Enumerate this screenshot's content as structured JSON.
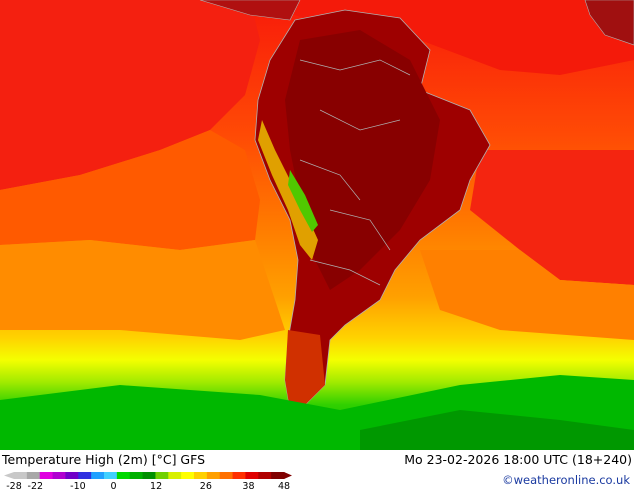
{
  "header": {
    "title": "Temperature High (2m) [°C] GFS",
    "run_time": "Mo 23-02-2026 18:00 UTC (18+240)"
  },
  "credit": "©weatheronline.co.uk",
  "legend": {
    "ticks": [
      {
        "label": "-28",
        "value": -28
      },
      {
        "label": "-22",
        "value": -22
      },
      {
        "label": "-10",
        "value": -10
      },
      {
        "label": "0",
        "value": 0
      },
      {
        "label": "12",
        "value": 12
      },
      {
        "label": "26",
        "value": 26
      },
      {
        "label": "38",
        "value": 38
      },
      {
        "label": "48",
        "value": 48
      }
    ],
    "colors": [
      "#c8c8c8",
      "#a8a8a8",
      "#e000e0",
      "#b000d0",
      "#7000c8",
      "#3030e0",
      "#20a0ff",
      "#40d0ff",
      "#00d800",
      "#00b000",
      "#009000",
      "#70d000",
      "#d8f000",
      "#ffff00",
      "#ffd000",
      "#ffa000",
      "#ff7000",
      "#ff3000",
      "#e00000",
      "#b00000",
      "#800000"
    ]
  },
  "colors": {
    "ocean_warm": "#f81a0a",
    "ocean_orange": "#ff7a00",
    "land_hot": "#9a0000",
    "cold_green": "#00c800",
    "borders": "#a0a0a0"
  }
}
